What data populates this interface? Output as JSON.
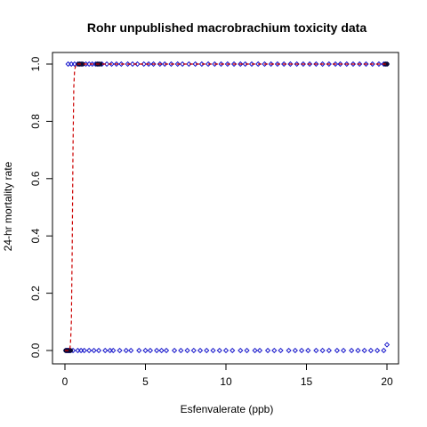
{
  "chart_data": {
    "type": "scatter",
    "title": "Rohr unpublished macrobrachium toxicity data",
    "xlabel": "Esfenvalerate (ppb)",
    "ylabel": "24-hr mortality rate",
    "xlim": [
      0,
      20
    ],
    "ylim": [
      0,
      1
    ],
    "x_ticks": [
      "0",
      "5",
      "10",
      "15",
      "20"
    ],
    "y_ticks": [
      "0.0",
      "0.2",
      "0.4",
      "0.6",
      "0.8",
      "1.0"
    ],
    "point_color": "#1a1acc",
    "curve_color": "#cc0000",
    "series": [
      {
        "values": [
          [
            0.05,
            0
          ],
          [
            0.1,
            0
          ],
          [
            0.15,
            0
          ],
          [
            0.2,
            0
          ],
          [
            0.25,
            0
          ],
          [
            0.3,
            0
          ],
          [
            0.35,
            0
          ],
          [
            0.5,
            0
          ],
          [
            0.8,
            0
          ],
          [
            1.0,
            0
          ],
          [
            1.2,
            0
          ],
          [
            1.5,
            0
          ],
          [
            1.8,
            0
          ],
          [
            2.1,
            0
          ],
          [
            2.5,
            0
          ],
          [
            2.8,
            0
          ],
          [
            3.0,
            0
          ],
          [
            3.4,
            0
          ],
          [
            3.8,
            0
          ],
          [
            4.1,
            0
          ],
          [
            4.6,
            0
          ],
          [
            5.0,
            0
          ],
          [
            5.3,
            0
          ],
          [
            5.7,
            0
          ],
          [
            6.0,
            0
          ],
          [
            6.3,
            0
          ],
          [
            6.8,
            0
          ],
          [
            7.2,
            0
          ],
          [
            7.6,
            0
          ],
          [
            8.0,
            0
          ],
          [
            8.4,
            0
          ],
          [
            8.8,
            0
          ],
          [
            9.2,
            0
          ],
          [
            9.6,
            0
          ],
          [
            10.0,
            0
          ],
          [
            10.4,
            0
          ],
          [
            10.9,
            0
          ],
          [
            11.3,
            0
          ],
          [
            11.8,
            0
          ],
          [
            12.1,
            0
          ],
          [
            12.6,
            0
          ],
          [
            13.0,
            0
          ],
          [
            13.4,
            0
          ],
          [
            13.9,
            0
          ],
          [
            14.3,
            0
          ],
          [
            14.7,
            0
          ],
          [
            15.1,
            0
          ],
          [
            15.6,
            0
          ],
          [
            16.0,
            0
          ],
          [
            16.4,
            0
          ],
          [
            16.9,
            0
          ],
          [
            17.3,
            0
          ],
          [
            17.8,
            0
          ],
          [
            18.2,
            0
          ],
          [
            18.6,
            0
          ],
          [
            19.0,
            0
          ],
          [
            19.4,
            0
          ],
          [
            19.8,
            0
          ],
          [
            20.0,
            0.02
          ],
          [
            0.2,
            1
          ],
          [
            0.4,
            1
          ],
          [
            0.6,
            1
          ],
          [
            0.8,
            1
          ],
          [
            0.9,
            1
          ],
          [
            1.0,
            1
          ],
          [
            1.1,
            1
          ],
          [
            1.3,
            1
          ],
          [
            1.5,
            1
          ],
          [
            1.7,
            1
          ],
          [
            1.9,
            1
          ],
          [
            2.0,
            1
          ],
          [
            2.1,
            1
          ],
          [
            2.3,
            1
          ],
          [
            2.6,
            1
          ],
          [
            2.9,
            1
          ],
          [
            3.2,
            1
          ],
          [
            3.5,
            1
          ],
          [
            3.9,
            1
          ],
          [
            4.2,
            1
          ],
          [
            4.5,
            1
          ],
          [
            4.9,
            1
          ],
          [
            5.2,
            1
          ],
          [
            5.5,
            1
          ],
          [
            5.9,
            1
          ],
          [
            6.2,
            1
          ],
          [
            6.6,
            1
          ],
          [
            7.0,
            1
          ],
          [
            7.3,
            1
          ],
          [
            7.7,
            1
          ],
          [
            8.1,
            1
          ],
          [
            8.5,
            1
          ],
          [
            8.9,
            1
          ],
          [
            9.3,
            1
          ],
          [
            9.7,
            1
          ],
          [
            10.1,
            1
          ],
          [
            10.5,
            1
          ],
          [
            10.9,
            1
          ],
          [
            11.2,
            1
          ],
          [
            11.6,
            1
          ],
          [
            12.0,
            1
          ],
          [
            12.4,
            1
          ],
          [
            12.8,
            1
          ],
          [
            13.2,
            1
          ],
          [
            13.6,
            1
          ],
          [
            14.0,
            1
          ],
          [
            14.4,
            1
          ],
          [
            14.8,
            1
          ],
          [
            15.2,
            1
          ],
          [
            15.6,
            1
          ],
          [
            16.0,
            1
          ],
          [
            16.4,
            1
          ],
          [
            16.8,
            1
          ],
          [
            17.1,
            1
          ],
          [
            17.5,
            1
          ],
          [
            17.9,
            1
          ],
          [
            18.3,
            1
          ],
          [
            18.7,
            1
          ],
          [
            19.1,
            1
          ],
          [
            19.5,
            1
          ],
          [
            19.8,
            1
          ],
          [
            19.9,
            1
          ],
          [
            20.0,
            1
          ]
        ]
      }
    ],
    "filled_points": [
      [
        0.05,
        0
      ],
      [
        0.1,
        0
      ],
      [
        0.15,
        0
      ],
      [
        0.2,
        0
      ],
      [
        0.25,
        0
      ],
      [
        0.3,
        0
      ],
      [
        0.35,
        0
      ],
      [
        0.85,
        1
      ],
      [
        0.9,
        1
      ],
      [
        1.0,
        1
      ],
      [
        1.1,
        1
      ],
      [
        2.0,
        1
      ],
      [
        2.1,
        1
      ],
      [
        2.2,
        1
      ],
      [
        19.9,
        1
      ],
      [
        20.0,
        1
      ]
    ],
    "fitted_curve": [
      [
        0.0,
        0.0
      ],
      [
        0.2,
        0.0
      ],
      [
        0.3,
        0.0
      ],
      [
        0.35,
        0.03
      ],
      [
        0.4,
        0.1
      ],
      [
        0.45,
        0.35
      ],
      [
        0.5,
        0.7
      ],
      [
        0.55,
        0.92
      ],
      [
        0.6,
        0.98
      ],
      [
        0.7,
        1.0
      ],
      [
        1.0,
        1.0
      ],
      [
        5.0,
        1.0
      ],
      [
        10.0,
        1.0
      ],
      [
        15.0,
        1.0
      ],
      [
        20.0,
        1.0
      ]
    ]
  }
}
